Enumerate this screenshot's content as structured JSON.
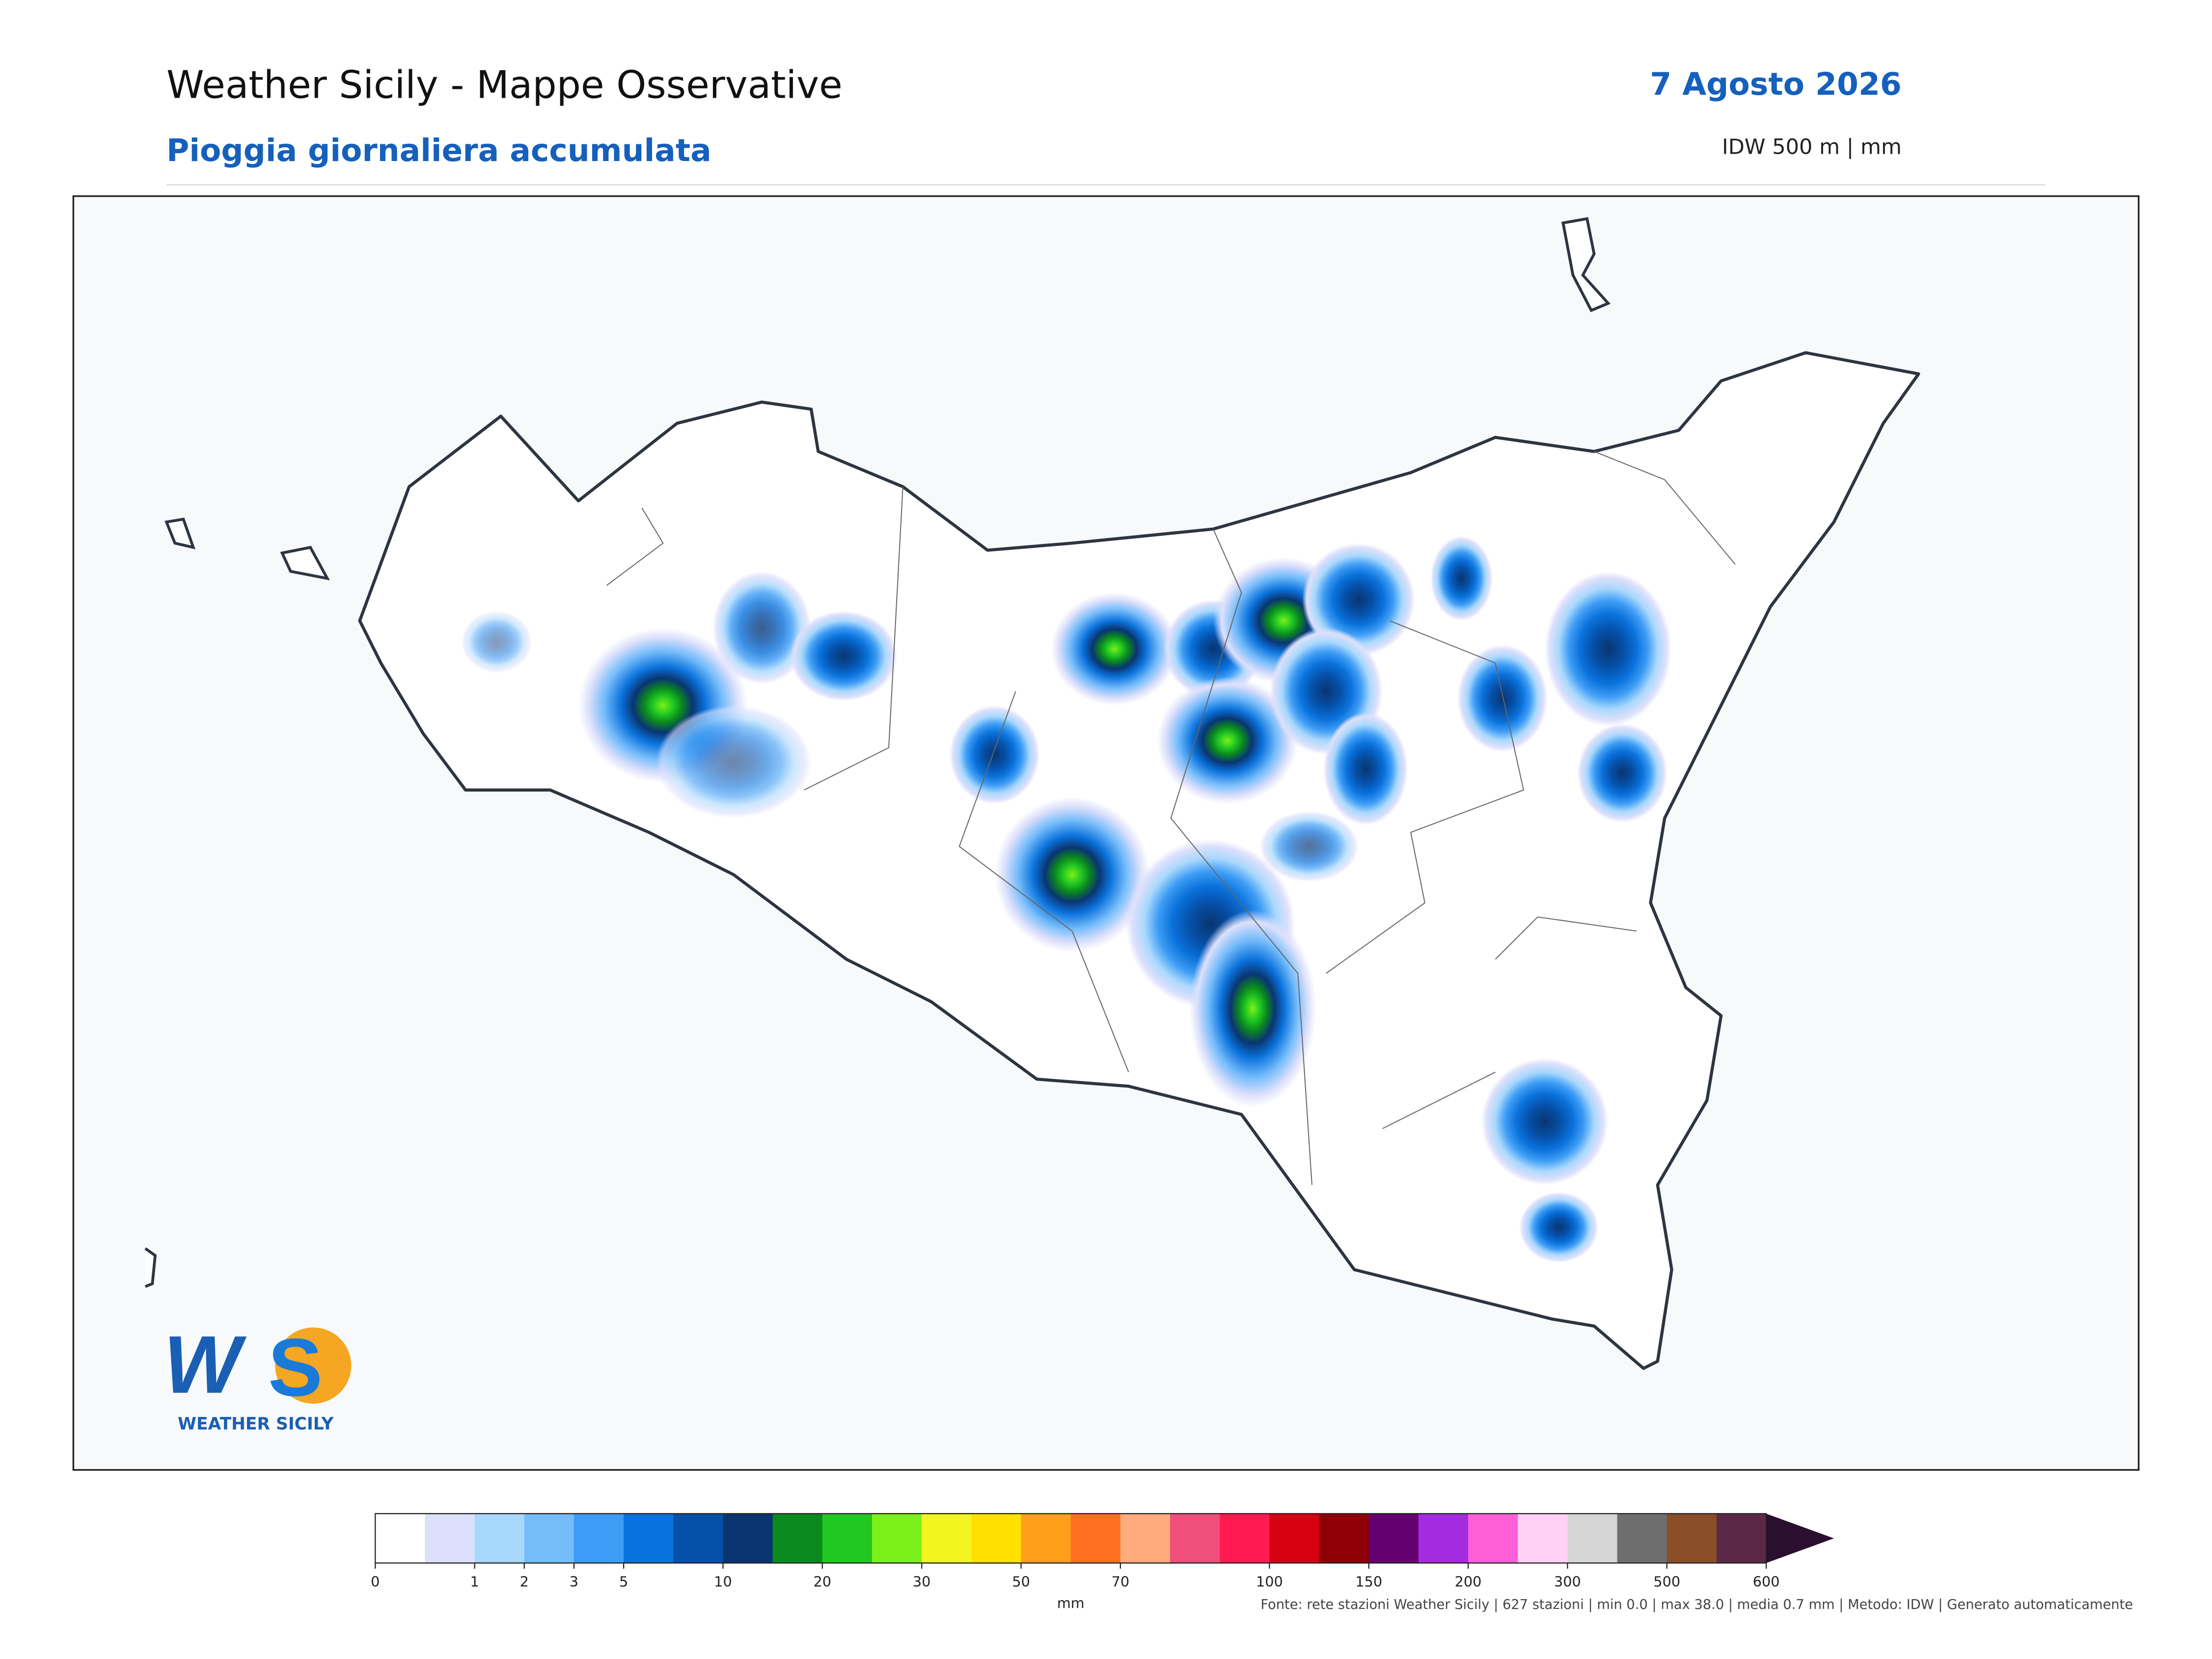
{
  "header": {
    "title": "Weather Sicily - Mappe Osservative",
    "subtitle": "Pioggia giornaliera accumulata",
    "date": "7 Agosto 2026",
    "method": "IDW 500 m | mm"
  },
  "logo": {
    "text": "WEATHER SICILY"
  },
  "colorbar": {
    "unit": "mm",
    "bounds": [
      0,
      null,
      1,
      2,
      3,
      5,
      null,
      10,
      null,
      20,
      null,
      30,
      null,
      50,
      null,
      70,
      null,
      null,
      100,
      null,
      150,
      null,
      200,
      null,
      300,
      null,
      500,
      null,
      600
    ],
    "colors": [
      "#ffffff",
      "#dde0fb",
      "#a9d8fd",
      "#75bcfb",
      "#3d9cf5",
      "#0a72dc",
      "#0550a8",
      "#0a3570",
      "#0b8a1e",
      "#22c822",
      "#7cf01a",
      "#f2f51e",
      "#ffe000",
      "#ff9f1a",
      "#ff7020",
      "#ffab7e",
      "#ef4f7a",
      "#ff1a4f",
      "#d70013",
      "#8e0006",
      "#650070",
      "#a32be0",
      "#ff5fd6",
      "#ffd2f5",
      "#d6d6d6",
      "#6e6e6e",
      "#8a4f26",
      "#5b2947"
    ],
    "extend_color": "#2a0f2e"
  },
  "footer": {
    "source": "Fonte: rete stazioni Weather Sicily | 627 stazioni | min 0.0 | max 38.0 | media 0.7 mm | Metodo: IDW | Generato automaticamente"
  }
}
